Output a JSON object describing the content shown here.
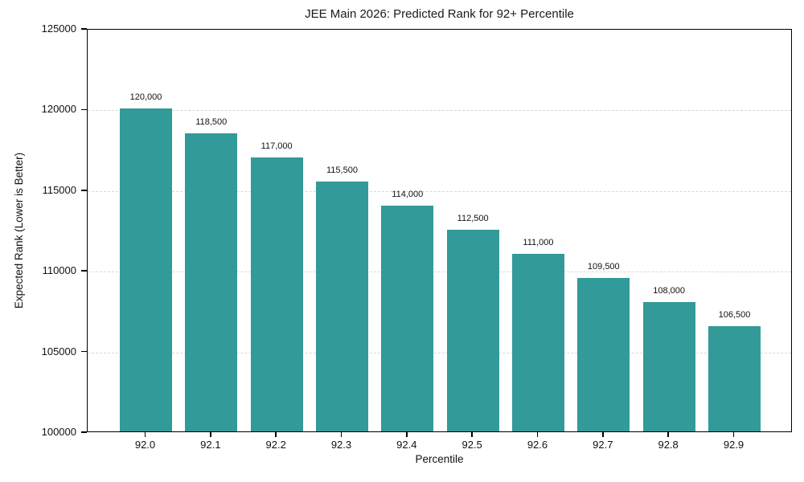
{
  "figure": {
    "background": "#ffffff",
    "text_color": "#111111",
    "spine_color": "#000000"
  },
  "chart_data": {
    "type": "bar",
    "title": "JEE Main 2026: Predicted Rank for 92+ Percentile",
    "xlabel": "Percentile",
    "ylabel": "Expected Rank (Lower is Better)",
    "categories": [
      "92.0",
      "92.1",
      "92.2",
      "92.3",
      "92.4",
      "92.5",
      "92.6",
      "92.7",
      "92.8",
      "92.9"
    ],
    "values": [
      120000,
      118500,
      117000,
      115500,
      114000,
      112500,
      111000,
      109500,
      108000,
      106500
    ],
    "value_labels": [
      "120,000",
      "118,500",
      "117,000",
      "115,500",
      "114,000",
      "112,500",
      "111,000",
      "109,500",
      "108,000",
      "106,500"
    ],
    "ylim": [
      100000,
      125000
    ],
    "yticks": [
      100000,
      105000,
      110000,
      115000,
      120000,
      125000
    ],
    "ytick_labels": [
      "100000",
      "105000",
      "110000",
      "115000",
      "120000",
      "125000"
    ],
    "bar_color": "#329a98",
    "grid": {
      "axis": "y",
      "style": "dashed",
      "color": "#d8d8d8"
    },
    "legend": "none"
  }
}
